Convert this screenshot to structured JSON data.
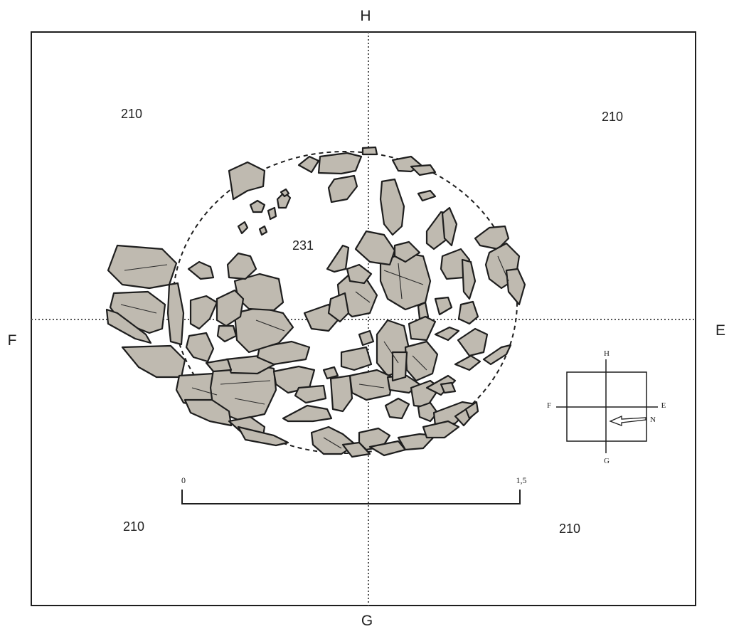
{
  "axes": {
    "north_label": "H",
    "south_label": "G",
    "west_label": "F",
    "east_label": "E"
  },
  "contexts": {
    "feature_label": "231",
    "top_left": "210",
    "top_right": "210",
    "bottom_left": "210",
    "bottom_right": "210"
  },
  "scale_bar": {
    "start_label": "0",
    "end_label": "1,5"
  },
  "orientation_key": {
    "top": "H",
    "bottom": "G",
    "left": "F",
    "right": "E",
    "north": "N"
  },
  "colors": {
    "stone_fill": "#bfbab0",
    "outline": "#1e1e1e"
  }
}
